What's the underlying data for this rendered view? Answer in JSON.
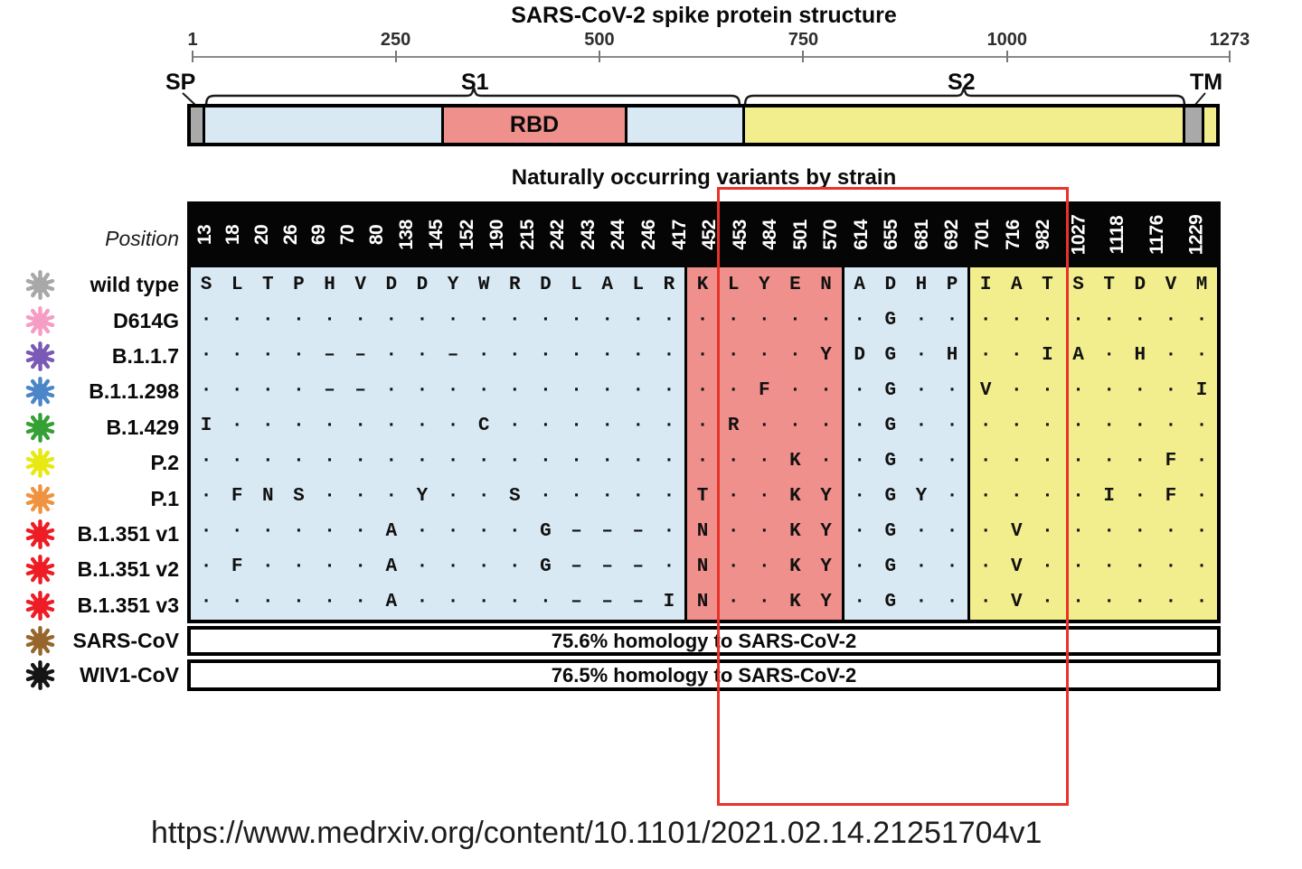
{
  "figure": {
    "structure": {
      "title": "SARS-CoV-2 spike protein structure",
      "axis": {
        "min": 1,
        "max": 1273,
        "ticks": [
          "1",
          "250",
          "500",
          "750",
          "1000",
          "1273"
        ]
      },
      "region_labels": {
        "sp": "SP",
        "s1": "S1",
        "s2": "S2",
        "tm": "TM"
      },
      "rbd_label": "RBD",
      "segments": [
        {
          "name": "signal-peptide",
          "color": "#a9a9a9"
        },
        {
          "name": "s1-n-terminal",
          "color": "#d9e9f3"
        },
        {
          "name": "rbd",
          "color": "#f0908c"
        },
        {
          "name": "s1-c-terminal",
          "color": "#d9e9f3"
        },
        {
          "name": "s2",
          "color": "#f3ee8d"
        },
        {
          "name": "tm",
          "color": "#a9a9a9"
        },
        {
          "name": "c-terminal",
          "color": "#f3ee8d"
        }
      ]
    },
    "variants": {
      "title": "Naturally occurring variants by strain",
      "position_label": "Position",
      "positions": [
        "13",
        "18",
        "20",
        "26",
        "69",
        "70",
        "80",
        "138",
        "145",
        "152",
        "190",
        "215",
        "242",
        "243",
        "244",
        "246",
        "417",
        "452",
        "453",
        "484",
        "501",
        "570",
        "614",
        "655",
        "681",
        "692",
        "701",
        "716",
        "982",
        "1027",
        "1118",
        "1176",
        "1229"
      ],
      "sections": [
        {
          "from": 0,
          "to": 15,
          "color": "#d9e9f3"
        },
        {
          "from": 16,
          "to": 20,
          "color": "#f0908c"
        },
        {
          "from": 21,
          "to": 24,
          "color": "#d9e9f3"
        },
        {
          "from": 25,
          "to": 32,
          "color": "#f3ee8d"
        }
      ],
      "highlight_box": {
        "color": "#e8322a",
        "from_position": "452",
        "to_position": "716"
      },
      "strains": [
        {
          "name": "wild type",
          "icon_color": "#a8a8a8",
          "cells": [
            "S",
            "L",
            "T",
            "P",
            "H",
            "V",
            "D",
            "D",
            "Y",
            "W",
            "R",
            "D",
            "L",
            "A",
            "L",
            "R",
            "K",
            "L",
            "Y",
            "E",
            "N",
            "A",
            "D",
            "H",
            "P",
            "I",
            "A",
            "T",
            "S",
            "T",
            "D",
            "V",
            "M"
          ]
        },
        {
          "name": "D614G",
          "icon_color": "#f59dc4",
          "cells": [
            ".",
            ".",
            ".",
            ".",
            ".",
            ".",
            ".",
            ".",
            ".",
            ".",
            ".",
            ".",
            ".",
            ".",
            ".",
            ".",
            ".",
            ".",
            ".",
            ".",
            ".",
            ".",
            "G",
            ".",
            ".",
            ".",
            ".",
            ".",
            ".",
            ".",
            ".",
            ".",
            "."
          ]
        },
        {
          "name": "B.1.1.7",
          "icon_color": "#7a5ab5",
          "cells": [
            ".",
            ".",
            ".",
            ".",
            "-",
            "-",
            ".",
            ".",
            "-",
            ".",
            ".",
            ".",
            ".",
            ".",
            ".",
            ".",
            ".",
            ".",
            ".",
            ".",
            "Y",
            "D",
            "G",
            ".",
            "H",
            ".",
            ".",
            "I",
            "A",
            ".",
            "H",
            ".",
            "."
          ]
        },
        {
          "name": "B.1.1.298",
          "icon_color": "#4a86c8",
          "cells": [
            ".",
            ".",
            ".",
            ".",
            "-",
            "-",
            ".",
            ".",
            ".",
            ".",
            ".",
            ".",
            ".",
            ".",
            ".",
            ".",
            ".",
            ".",
            "F",
            ".",
            ".",
            ".",
            "G",
            ".",
            ".",
            "V",
            ".",
            ".",
            ".",
            ".",
            ".",
            ".",
            "I"
          ]
        },
        {
          "name": "B.1.429",
          "icon_color": "#35a035",
          "cells": [
            "I",
            ".",
            ".",
            ".",
            ".",
            ".",
            ".",
            ".",
            ".",
            "C",
            ".",
            ".",
            ".",
            ".",
            ".",
            ".",
            ".",
            "R",
            ".",
            ".",
            ".",
            ".",
            "G",
            ".",
            ".",
            ".",
            ".",
            ".",
            ".",
            ".",
            ".",
            ".",
            "."
          ]
        },
        {
          "name": "P.2",
          "icon_color": "#e8e812",
          "cells": [
            ".",
            ".",
            ".",
            ".",
            ".",
            ".",
            ".",
            ".",
            ".",
            ".",
            ".",
            ".",
            ".",
            ".",
            ".",
            ".",
            ".",
            ".",
            ".",
            "K",
            ".",
            ".",
            "G",
            ".",
            ".",
            ".",
            ".",
            ".",
            ".",
            ".",
            ".",
            "F",
            "."
          ]
        },
        {
          "name": "P.1",
          "icon_color": "#f09340",
          "cells": [
            ".",
            "F",
            "N",
            "S",
            ".",
            ".",
            ".",
            "Y",
            ".",
            ".",
            "S",
            ".",
            ".",
            ".",
            ".",
            ".",
            "T",
            ".",
            ".",
            "K",
            "Y",
            ".",
            "G",
            "Y",
            ".",
            ".",
            ".",
            ".",
            ".",
            "I",
            ".",
            "F",
            "."
          ]
        },
        {
          "name": "B.1.351 v1",
          "icon_color": "#ee1c25",
          "cells": [
            ".",
            ".",
            ".",
            ".",
            ".",
            ".",
            "A",
            ".",
            ".",
            ".",
            ".",
            "G",
            "-",
            "-",
            "-",
            ".",
            "N",
            ".",
            ".",
            "K",
            "Y",
            ".",
            "G",
            ".",
            ".",
            ".",
            "V",
            ".",
            ".",
            ".",
            ".",
            ".",
            "."
          ]
        },
        {
          "name": "B.1.351 v2",
          "icon_color": "#ee1c25",
          "cells": [
            ".",
            "F",
            ".",
            ".",
            ".",
            ".",
            "A",
            ".",
            ".",
            ".",
            ".",
            "G",
            "-",
            "-",
            "-",
            ".",
            "N",
            ".",
            ".",
            "K",
            "Y",
            ".",
            "G",
            ".",
            ".",
            ".",
            "V",
            ".",
            ".",
            ".",
            ".",
            ".",
            "."
          ]
        },
        {
          "name": "B.1.351 v3",
          "icon_color": "#ee1c25",
          "cells": [
            ".",
            ".",
            ".",
            ".",
            ".",
            ".",
            "A",
            ".",
            ".",
            ".",
            ".",
            ".",
            "-",
            "-",
            "-",
            "I",
            "N",
            ".",
            ".",
            "K",
            "Y",
            ".",
            "G",
            ".",
            ".",
            ".",
            "V",
            ".",
            ".",
            ".",
            ".",
            ".",
            "."
          ]
        }
      ],
      "homology": [
        {
          "name": "SARS-CoV",
          "icon_color": "#96662c",
          "text": "75.6% homology to SARS-CoV-2"
        },
        {
          "name": "WIV1-CoV",
          "icon_color": "#151515",
          "text": "76.5% homology to SARS-CoV-2"
        }
      ]
    },
    "source_url": "https://www.medrxiv.org/content/10.1101/2021.02.14.21251704v1"
  }
}
